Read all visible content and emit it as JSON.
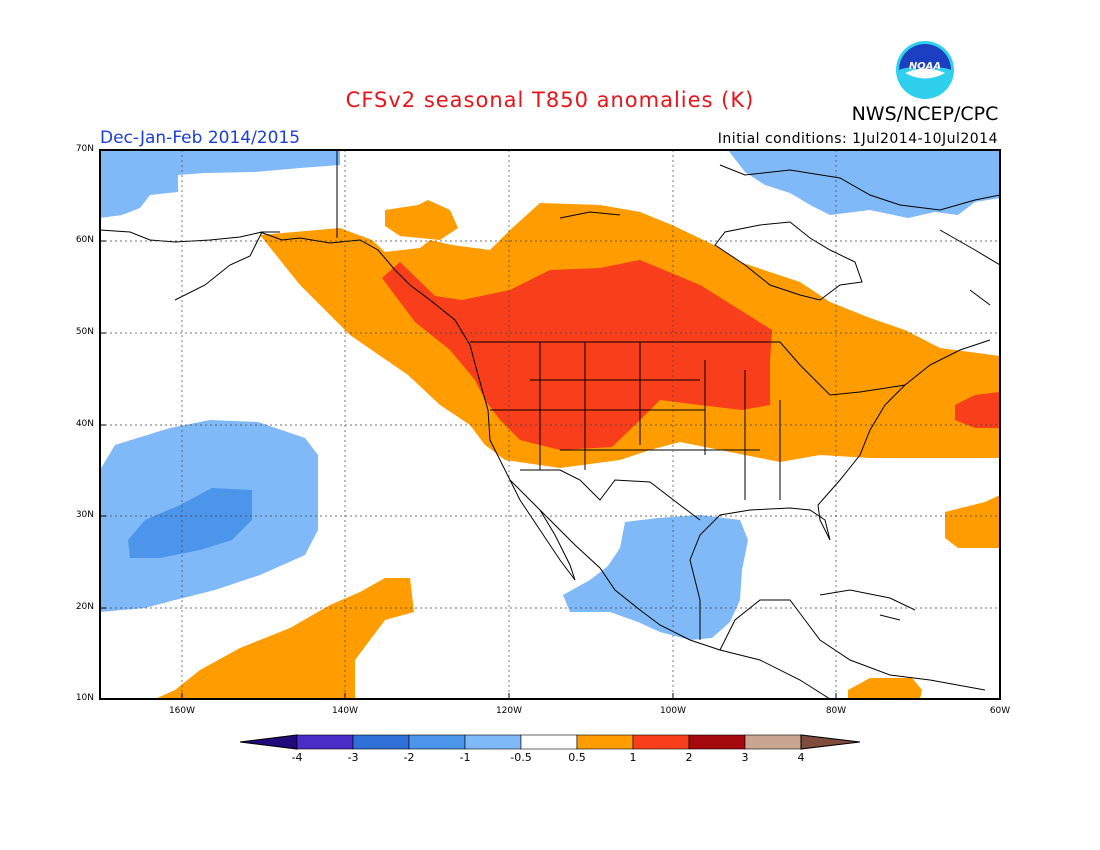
{
  "title": "CFSv2 seasonal T850 anomalies (K)",
  "agency": "NWS/NCEP/CPC",
  "logo_text": "NOAA",
  "period": "Dec-Jan-Feb 2014/2015",
  "initial_conditions": "Initial conditions: 1Jul2014-10Jul2014",
  "colors": {
    "title": "#e8141a",
    "period": "#1a3ed6",
    "logo_outer": "#2fd0ee",
    "logo_inner": "#1a3fc0"
  },
  "lat_labels": [
    "70N",
    "60N",
    "50N",
    "40N",
    "30N",
    "20N",
    "10N"
  ],
  "lon_labels": [
    "160W",
    "140W",
    "120W",
    "100W",
    "80W",
    "60W"
  ],
  "colorbar": {
    "labels": [
      "-4",
      "-3",
      "-2",
      "-1",
      "-0.5",
      "0.5",
      "1",
      "2",
      "3",
      "4"
    ],
    "colors": [
      "#4a2cc7",
      "#2f6fd7",
      "#4b95ea",
      "#7fb9f7",
      "#ffffff",
      "#ff9c00",
      "#f83e1a",
      "#a4090e",
      "#c9a592"
    ],
    "end_low": "#1e0a7c",
    "end_high": "#7d4c3c"
  }
}
